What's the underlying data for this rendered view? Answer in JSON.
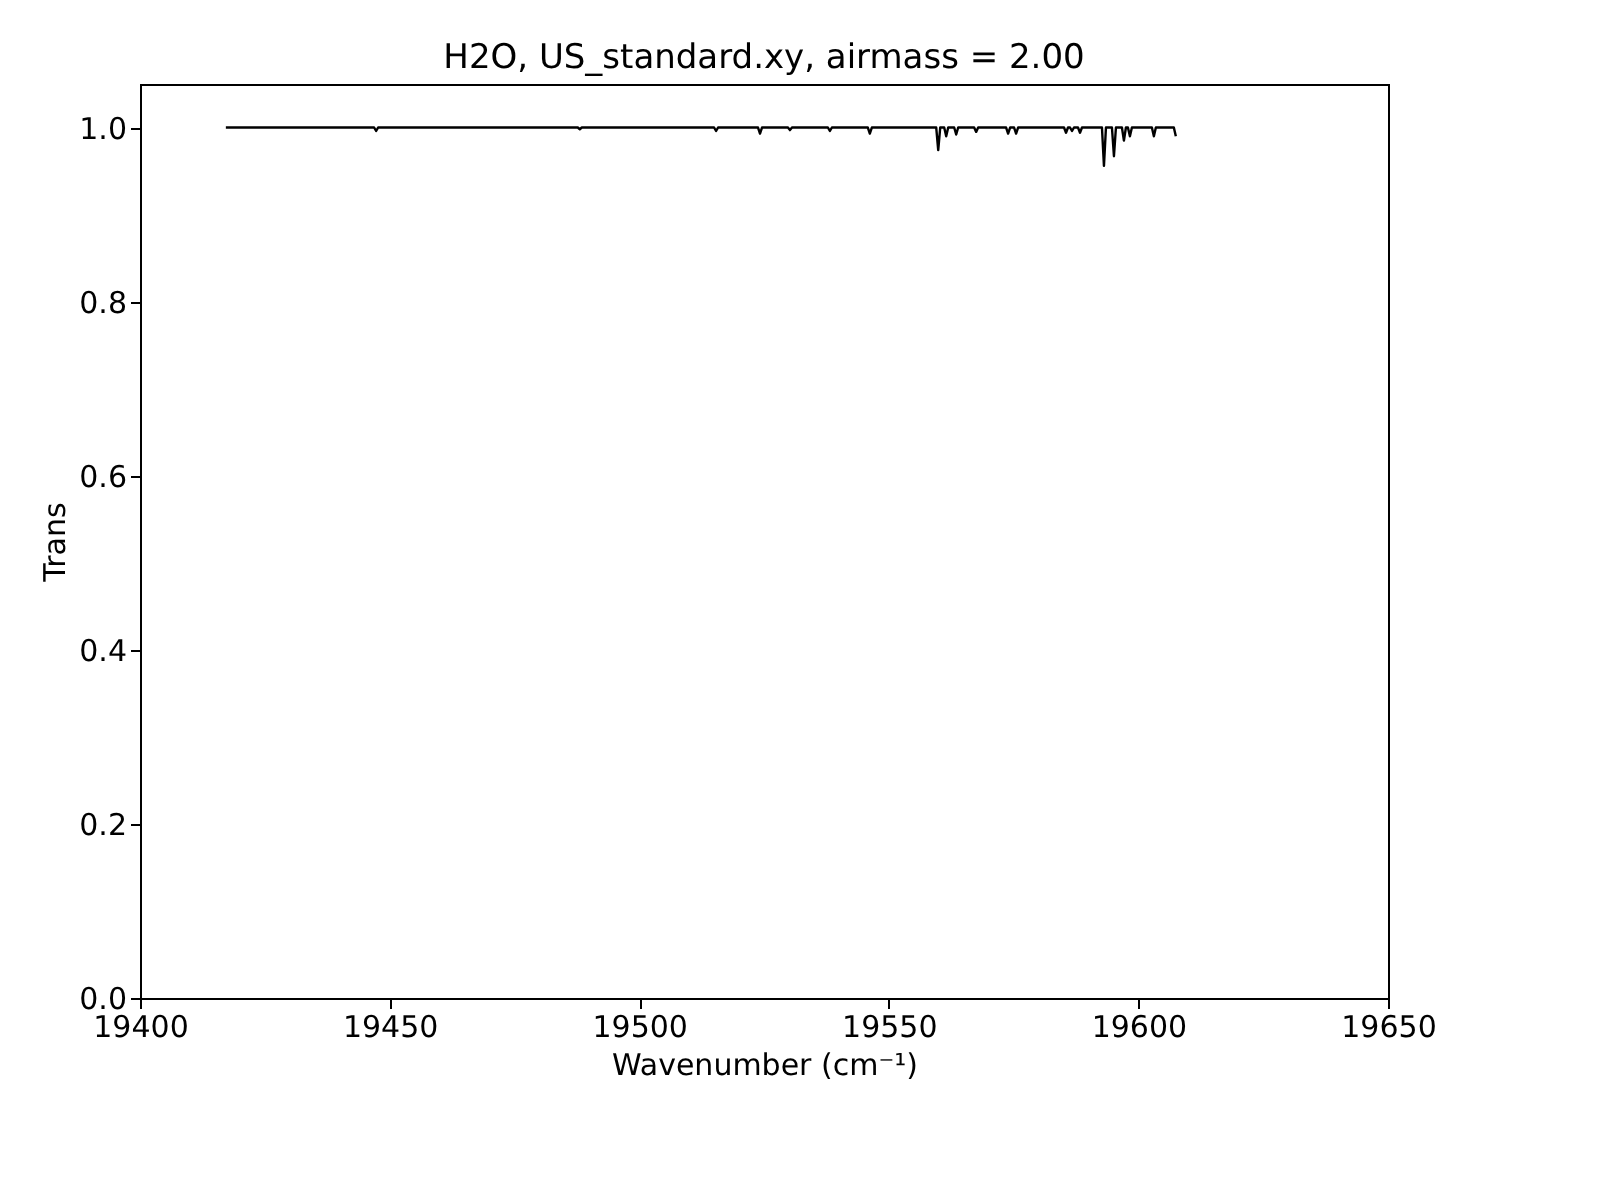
{
  "chart_data": {
    "type": "line",
    "title": "H2O, US_standard.xy, airmass = 2.00",
    "xlabel": "Wavenumber (cm⁻¹)",
    "ylabel": "Trans",
    "series": [
      {
        "color": "#000000",
        "x": [
          19417.2,
          19446.9,
          19447.3,
          19447.7,
          19487.7,
          19488.1,
          19488.5,
          19515.0,
          19515.4,
          19515.8,
          19523.8,
          19524.2,
          19524.6,
          19529.8,
          19530.2,
          19530.6,
          19537.8,
          19538.2,
          19538.6,
          19545.8,
          19546.2,
          19546.6,
          19559.5,
          19559.9,
          19560.3,
          19561.1,
          19561.5,
          19561.9,
          19563.1,
          19563.5,
          19563.9,
          19567.1,
          19567.5,
          19567.9,
          19573.5,
          19573.9,
          19574.3,
          19575.1,
          19575.5,
          19575.9,
          19585.1,
          19585.5,
          19585.9,
          19586.3,
          19586.7,
          19587.1,
          19587.9,
          19588.3,
          19588.7,
          19592.7,
          19593.1,
          19593.5,
          19594.7,
          19595.1,
          19595.5,
          19596.7,
          19597.1,
          19597.5,
          19597.9,
          19598.3,
          19598.7,
          19602.7,
          19603.1,
          19603.5,
          19607.1,
          19607.5
        ],
        "values": [
          1.0,
          1.0,
          0.996,
          1.0,
          1.0,
          0.998,
          1.0,
          1.0,
          0.996,
          1.0,
          1.0,
          0.993,
          1.0,
          1.0,
          0.997,
          1.0,
          1.0,
          0.996,
          1.0,
          1.0,
          0.993,
          1.0,
          1.0,
          0.974,
          1.0,
          1.0,
          0.99,
          1.0,
          1.0,
          0.992,
          1.0,
          1.0,
          0.995,
          1.0,
          1.0,
          0.993,
          1.0,
          1.0,
          0.993,
          1.0,
          1.0,
          0.994,
          1.0,
          1.0,
          0.996,
          1.0,
          1.0,
          0.994,
          1.0,
          1.0,
          0.956,
          1.0,
          1.0,
          0.967,
          1.0,
          1.0,
          0.985,
          1.0,
          1.0,
          0.99,
          1.0,
          1.0,
          0.99,
          1.0,
          1.0,
          0.99
        ]
      }
    ],
    "xlim": [
      19400,
      19650
    ],
    "xticks": [
      19400,
      19450,
      19500,
      19550,
      19600,
      19650
    ],
    "ylim": [
      0,
      1.05
    ],
    "yticks": [
      {
        "value": 0,
        "label": "0.0"
      },
      {
        "value": 0.2,
        "label": "0.2"
      },
      {
        "value": 0.4,
        "label": "0.4"
      },
      {
        "value": 0.6,
        "label": "0.6"
      },
      {
        "value": 0.8,
        "label": "0.8"
      },
      {
        "value": 1.0,
        "label": "1.0"
      }
    ],
    "grid": false
  }
}
